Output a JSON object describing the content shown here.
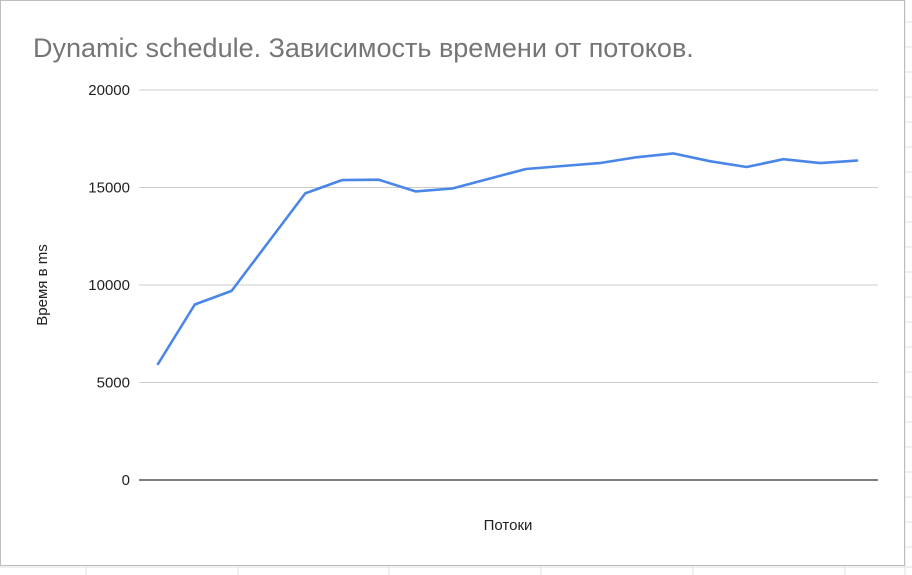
{
  "chart_data": {
    "type": "line",
    "title": "Dynamic schedule. Зависимость времени от потоков.",
    "xlabel": "Потоки",
    "ylabel": "Время в ms",
    "ylim": [
      0,
      20000
    ],
    "yticks": [
      "0",
      "5000",
      "10000",
      "15000",
      "20000"
    ],
    "ytick_values": [
      0,
      5000,
      10000,
      15000,
      20000
    ],
    "grid": true,
    "legend": "none",
    "x": [
      1,
      2,
      3,
      4,
      5,
      6,
      7,
      8,
      9,
      10,
      11,
      12,
      13,
      14,
      15,
      16,
      17,
      18,
      19,
      20
    ],
    "series": [
      {
        "color": "#4a86e8",
        "values": [
          5950,
          9000,
          9700,
          12200,
          14700,
          15380,
          15400,
          14800,
          14950,
          15450,
          15950,
          16100,
          16250,
          16550,
          16750,
          16350,
          16050,
          16450,
          16250,
          16380
        ]
      }
    ]
  }
}
